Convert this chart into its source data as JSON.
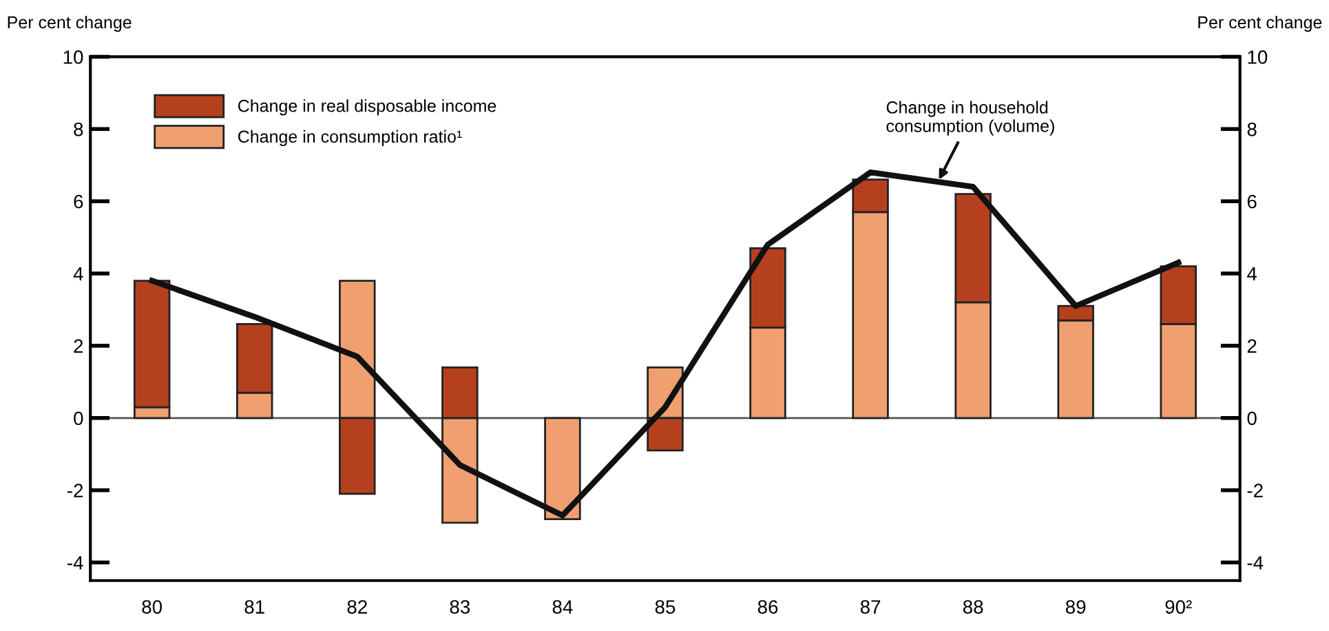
{
  "chart_data": {
    "type": "bar",
    "stacked": true,
    "categories": [
      "80",
      "81",
      "82",
      "83",
      "84",
      "85",
      "86",
      "87",
      "88",
      "89",
      "90²"
    ],
    "series": [
      {
        "name": "Change in consumption ratio¹",
        "color": "#f0a070",
        "values": [
          0.3,
          0.7,
          3.8,
          -2.9,
          -2.8,
          1.4,
          2.5,
          5.7,
          3.2,
          2.7,
          2.6
        ]
      },
      {
        "name": "Change in real disposable income",
        "color": "#b5401e",
        "values": [
          3.5,
          1.9,
          -2.1,
          1.4,
          null,
          -0.9,
          2.2,
          0.9,
          3.0,
          0.4,
          1.6
        ]
      },
      {
        "type": "line",
        "color": "#111111",
        "values": [
          3.8,
          2.8,
          1.7,
          -1.3,
          -2.7,
          0.3,
          4.8,
          6.8,
          6.4,
          3.1,
          4.3
        ]
      }
    ],
    "ylabel": "Per cent change",
    "y2label": "Per cent change",
    "ylim": [
      -4.5,
      10
    ],
    "yticks": [
      -4,
      -2,
      0,
      2,
      4,
      6,
      8,
      10
    ],
    "y2lim": [
      -4.5,
      10
    ],
    "y2ticks": [
      -4,
      -2,
      0,
      2,
      4,
      6,
      8,
      10
    ],
    "ref_lines": [
      {
        "axis": "y",
        "value": 0,
        "color": "#555555"
      }
    ],
    "annotations": [
      {
        "text": "Change in household\nconsumption (volume)",
        "x": "88",
        "y": 6.5
      }
    ],
    "legend": "top left",
    "grid": false
  }
}
